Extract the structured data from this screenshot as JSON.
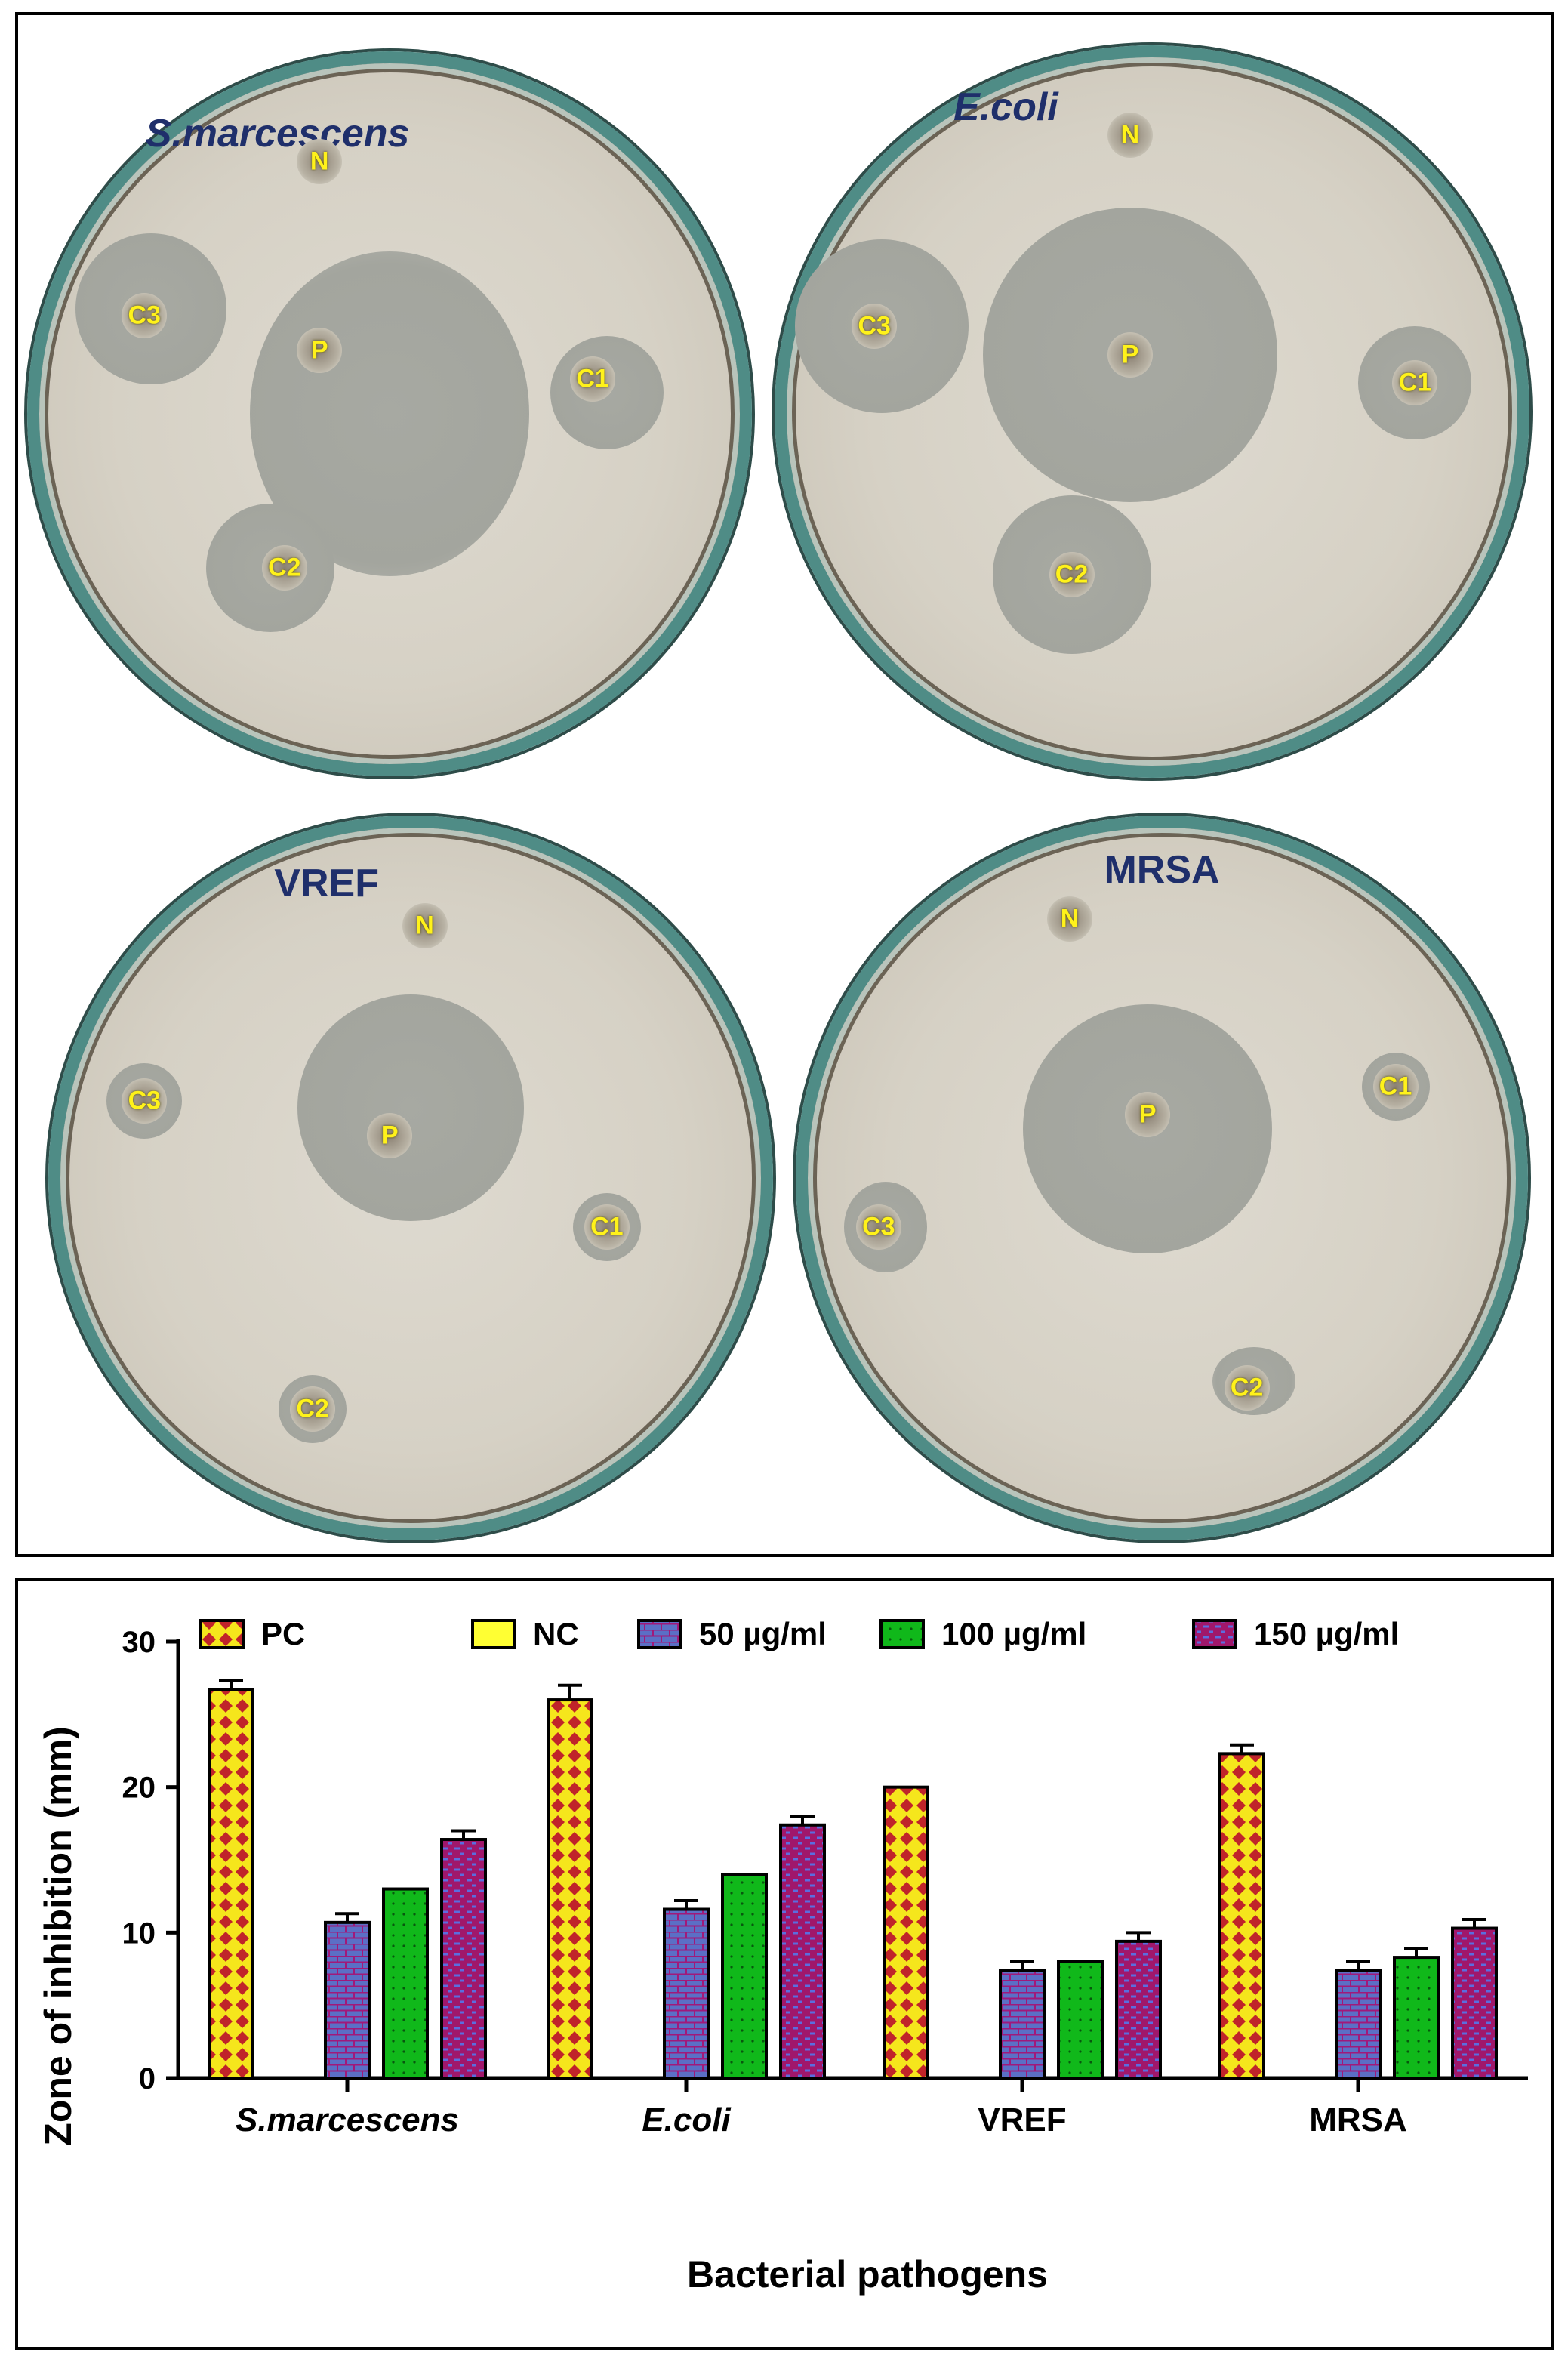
{
  "plates": [
    {
      "title": "S.marcescens",
      "italic": true,
      "wells": [
        "N",
        "P",
        "C1",
        "C2",
        "C3"
      ]
    },
    {
      "title": "E.coli",
      "italic": true,
      "wells": [
        "N",
        "P",
        "C1",
        "C2",
        "C3"
      ]
    },
    {
      "title": "VREF",
      "italic": false,
      "wells": [
        "N",
        "P",
        "C1",
        "C2",
        "C3"
      ]
    },
    {
      "title": "MRSA",
      "italic": false,
      "wells": [
        "N",
        "P",
        "C1",
        "C2",
        "C3"
      ]
    }
  ],
  "chart_data": {
    "type": "bar",
    "title": "",
    "xlabel": "Bacterial pathogens",
    "ylabel": "Zone of inhibition (mm)",
    "ylim": [
      0,
      30
    ],
    "yticks": [
      "0",
      "10",
      "20",
      "30"
    ],
    "categories": [
      "S.marcescens",
      "E.coli",
      "VREF",
      "MRSA"
    ],
    "italic_categories": [
      true,
      true,
      false,
      false
    ],
    "legend_position": "top",
    "series": [
      {
        "name": "PC",
        "values": [
          26.7,
          26.0,
          20.0,
          22.3
        ],
        "errors": [
          0.6,
          1.0,
          0,
          0.6
        ],
        "color": "#f5e61c",
        "pattern": "diamonds"
      },
      {
        "name": "NC",
        "values": [
          0,
          0,
          0,
          0
        ],
        "errors": [
          0,
          0,
          0,
          0
        ],
        "color": "#ffff33",
        "pattern": "none"
      },
      {
        "name": "50 µg/ml",
        "values": [
          10.7,
          11.6,
          7.4,
          7.4
        ],
        "errors": [
          0.6,
          0.6,
          0.6,
          0.6
        ],
        "color": "#5b6fc6",
        "pattern": "bricks"
      },
      {
        "name": "100 µg/ml",
        "values": [
          13.0,
          14.0,
          8.0,
          8.3
        ],
        "errors": [
          0,
          0,
          0,
          0.6
        ],
        "color": "#10b81a",
        "pattern": "dots"
      },
      {
        "name": "150 µg/ml",
        "values": [
          16.4,
          17.4,
          9.4,
          10.3
        ],
        "errors": [
          0.6,
          0.6,
          0.6,
          0.6
        ],
        "color": "#a0176b",
        "pattern": "dashes"
      }
    ]
  }
}
